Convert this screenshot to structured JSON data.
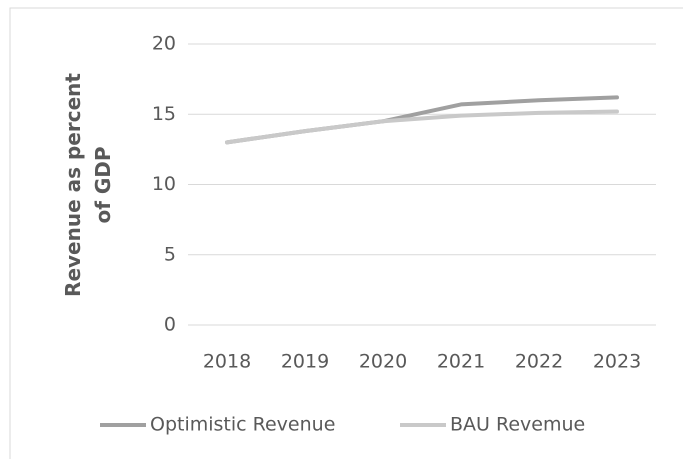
{
  "chart_data": {
    "type": "line",
    "y_label": "Revenue as percent of GDP",
    "categories": [
      "2018",
      "2019",
      "2020",
      "2021",
      "2022",
      "2023"
    ],
    "series": [
      {
        "name": "Optimistic Revenue",
        "color": "#a0a0a0",
        "values": [
          13.0,
          13.8,
          14.5,
          15.7,
          16.0,
          16.2
        ]
      },
      {
        "name": "BAU Revemue",
        "color": "#c9c9c9",
        "values": [
          13.0,
          13.8,
          14.5,
          14.9,
          15.1,
          15.2
        ]
      }
    ],
    "ylim": [
      0,
      20
    ],
    "yticks": [
      0,
      5,
      10,
      15,
      20
    ],
    "grid": true,
    "legend": "bottom"
  }
}
